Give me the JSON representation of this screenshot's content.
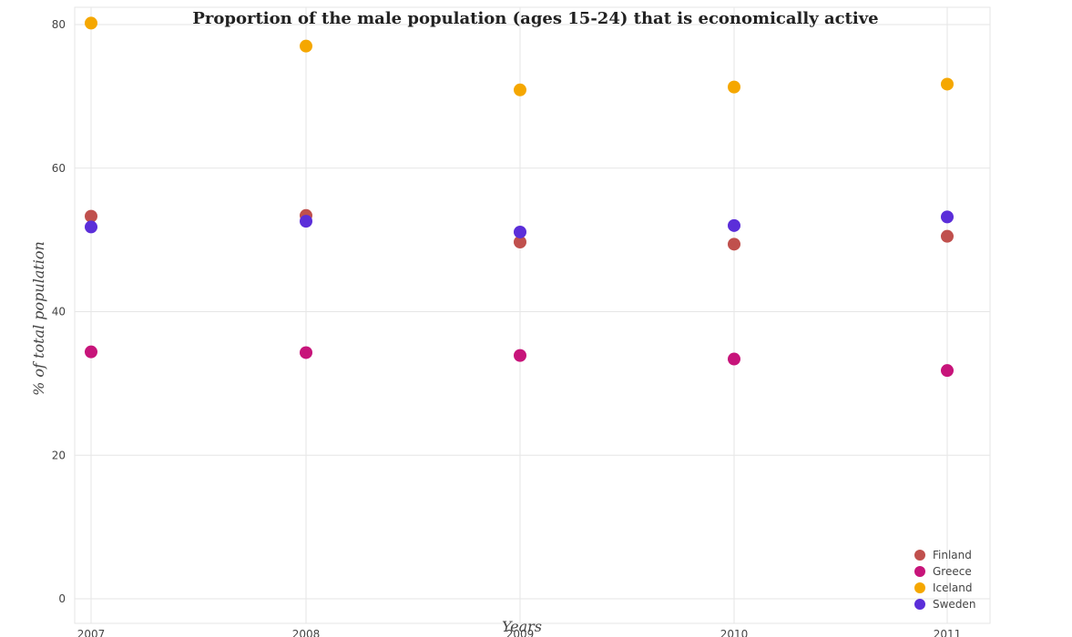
{
  "chart_data": {
    "type": "scatter",
    "title": "Proportion of the male population (ages 15-24) that is economically active",
    "xlabel": "Years",
    "ylabel": "% of total population",
    "categories": [
      "2007",
      "2008",
      "2009",
      "2010",
      "2011"
    ],
    "ylim": [
      0,
      85
    ],
    "yticks": [
      0,
      20,
      40,
      60,
      80
    ],
    "grid": true,
    "legend_position": "bottom-right",
    "series": [
      {
        "name": "Finland",
        "color": "#c0504d",
        "values": [
          53.3,
          53.4,
          49.7,
          49.4,
          50.5
        ]
      },
      {
        "name": "Greece",
        "color": "#c7147a",
        "values": [
          34.4,
          34.3,
          33.9,
          33.4,
          31.8
        ]
      },
      {
        "name": "Iceland",
        "color": "#f5a700",
        "values": [
          80.2,
          77.0,
          70.9,
          71.3,
          71.7
        ]
      },
      {
        "name": "Sweden",
        "color": "#5b2ed9",
        "values": [
          51.8,
          52.6,
          51.1,
          52.0,
          53.2
        ]
      }
    ]
  }
}
